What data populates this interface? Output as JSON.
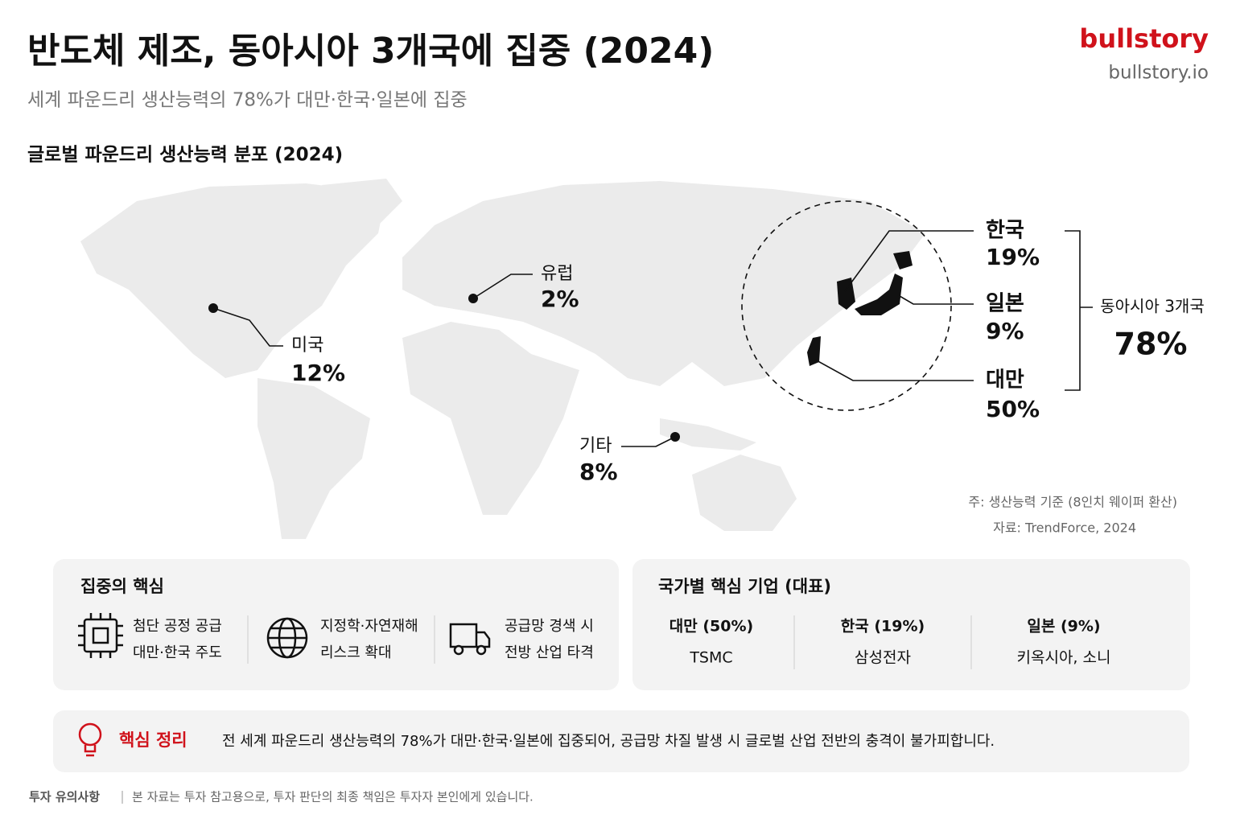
{
  "header": {
    "title": "반도체 제조, 동아시아 3개국에 집중 (2024)",
    "subtitle": "세계 파운드리 생산능력의 78%가 대만·한국·일본에 집중",
    "brand": "bullstory",
    "url": "bullstory.io"
  },
  "map": {
    "title": "글로벌 파운드리 생산능력 분포 (2024)",
    "regions": [
      {
        "name": "미국",
        "share": "12%"
      },
      {
        "name": "유럽",
        "share": "2%"
      },
      {
        "name": "기타",
        "share": "8%"
      },
      {
        "name": "한국",
        "share": "19%"
      },
      {
        "name": "일본",
        "share": "9%"
      },
      {
        "name": "대만",
        "share": "50%"
      }
    ],
    "group": {
      "label": "동아시아 3개국",
      "share": "78%"
    },
    "note": "주: 생산능력 기준 (8인치 웨이퍼 환산)",
    "source": "자료: TrendForce, 2024"
  },
  "concentration": {
    "title": "집중의 핵심",
    "items": [
      {
        "lines": [
          "첨단 공정 공급",
          "대만·한국 주도"
        ]
      },
      {
        "lines": [
          "지정학·자연재해",
          "리스크 확대"
        ]
      },
      {
        "lines": [
          "공급망 경색 시",
          "전방 산업 타격"
        ]
      }
    ]
  },
  "companies": {
    "title": "국가별 핵심 기업 (대표)",
    "items": [
      {
        "country": "대만 (50%)",
        "company": "TSMC"
      },
      {
        "country": "한국 (19%)",
        "company": "삼성전자"
      },
      {
        "country": "일본 (9%)",
        "company": "키옥시아, 소니"
      }
    ]
  },
  "summary": {
    "label": "핵심 정리",
    "text": "전 세계 파운드리 생산능력의 78%가 대만·한국·일본에 집중되어, 공급망 차질 발생 시 글로벌 산업 전반의 충격이 불가피합니다."
  },
  "disclaimer": {
    "label": "투자 유의사항",
    "text": "본 자료는 투자 참고용으로, 투자 판단의 최종 책임은 투자자 본인에게 있습니다."
  }
}
